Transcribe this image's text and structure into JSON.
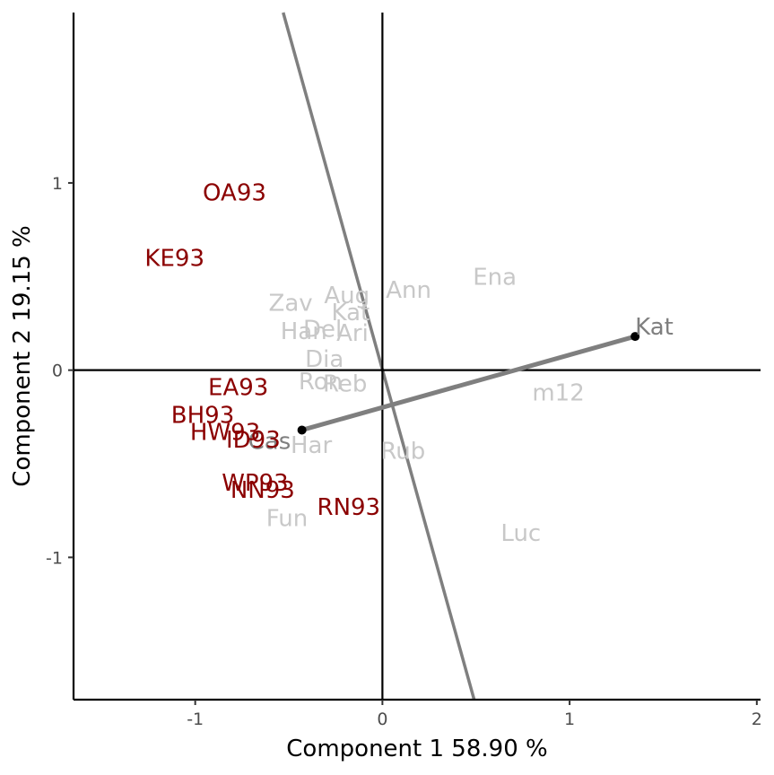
{
  "chart_data": {
    "type": "scatter",
    "title": "",
    "xlabel": "Component 1 58.90 %",
    "ylabel": "Component 2 19.15 %",
    "xlim": [
      -1.65,
      2.02
    ],
    "ylim": [
      -1.76,
      1.91
    ],
    "x_ticks": [
      -1,
      0,
      1,
      2
    ],
    "y_ticks": [
      -1,
      0,
      1
    ],
    "x_tick_labels": [
      "-1",
      "0",
      "1",
      "2"
    ],
    "y_tick_labels": [
      "-1",
      "0",
      "1"
    ],
    "grid": false,
    "legend": "none",
    "colors": {
      "samples": "#8b0000",
      "environments": "#c8c8c8",
      "highlighted": "#7f7f7f",
      "axes": "#000000"
    },
    "samples": [
      {
        "label": "OA93",
        "x": -0.79,
        "y": 0.95
      },
      {
        "label": "KE93",
        "x": -1.11,
        "y": 0.6
      },
      {
        "label": "EA93",
        "x": -0.77,
        "y": -0.09
      },
      {
        "label": "BH93",
        "x": -0.96,
        "y": -0.24
      },
      {
        "label": "HW93",
        "x": -0.84,
        "y": -0.33
      },
      {
        "label": "ID93",
        "x": -0.69,
        "y": -0.37
      },
      {
        "label": "WP93",
        "x": -0.68,
        "y": -0.6
      },
      {
        "label": "NN93",
        "x": -0.64,
        "y": -0.64
      },
      {
        "label": "RN93",
        "x": -0.18,
        "y": -0.73
      }
    ],
    "environments": [
      {
        "label": "Ena",
        "x": 0.6,
        "y": 0.5
      },
      {
        "label": "Ann",
        "x": 0.14,
        "y": 0.43
      },
      {
        "label": "Aug",
        "x": -0.19,
        "y": 0.4
      },
      {
        "label": "Zav",
        "x": -0.49,
        "y": 0.36
      },
      {
        "label": "Kat",
        "x": -0.17,
        "y": 0.31
      },
      {
        "label": "Del",
        "x": -0.32,
        "y": 0.22
      },
      {
        "label": "Ari",
        "x": -0.16,
        "y": 0.2
      },
      {
        "label": "Han",
        "x": -0.42,
        "y": 0.21
      },
      {
        "label": "Dia",
        "x": -0.31,
        "y": 0.06
      },
      {
        "label": "Ron",
        "x": -0.33,
        "y": -0.06
      },
      {
        "label": "Reb",
        "x": -0.2,
        "y": -0.07
      },
      {
        "label": "m12",
        "x": 0.94,
        "y": -0.12
      },
      {
        "label": "Har",
        "x": -0.38,
        "y": -0.4
      },
      {
        "label": "Rub",
        "x": 0.11,
        "y": -0.43
      },
      {
        "label": "Fun",
        "x": -0.51,
        "y": -0.79
      },
      {
        "label": "Luc",
        "x": 0.74,
        "y": -0.87
      }
    ],
    "comparison": {
      "from": {
        "label": "Cas",
        "x": -0.43,
        "y": -0.32
      },
      "to": {
        "label": "Kat",
        "x": 1.35,
        "y": 0.18
      }
    },
    "perpendicular_line": {
      "p1": {
        "x": -0.53,
        "y": 1.91
      },
      "p2": {
        "x": 0.49,
        "y": -1.76
      }
    }
  }
}
